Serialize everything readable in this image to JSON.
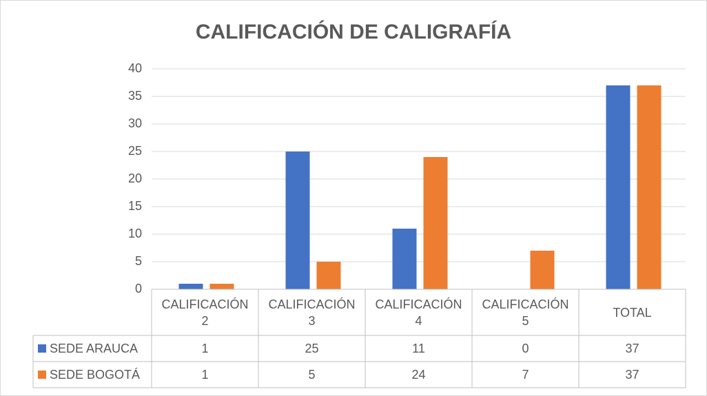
{
  "chart_data": {
    "type": "bar",
    "title": "CALIFICACIÓN DE CALIGRAFÍA",
    "categories": [
      "CALIFICACIÓN 2",
      "CALIFICACIÓN 3",
      "CALIFICACIÓN 4",
      "CALIFICACIÓN 5",
      "TOTAL"
    ],
    "series": [
      {
        "name": "SEDE ARAUCA",
        "color": "#4472c4",
        "values": [
          1,
          25,
          11,
          0,
          37
        ]
      },
      {
        "name": "SEDE BOGOTÁ",
        "color": "#ed7d31",
        "values": [
          1,
          5,
          24,
          7,
          37
        ]
      }
    ],
    "ylim": [
      0,
      40
    ],
    "yticks": [
      0,
      5,
      10,
      15,
      20,
      25,
      30,
      35,
      40
    ],
    "grid": true,
    "data_table": true
  }
}
